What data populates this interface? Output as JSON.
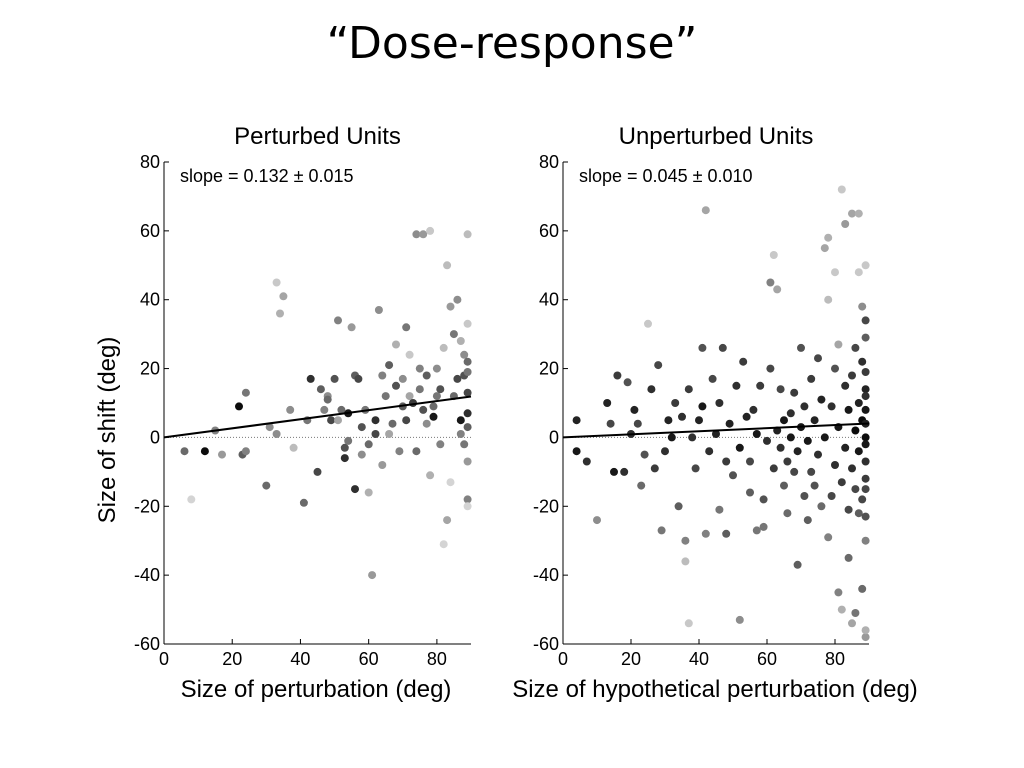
{
  "slide": {
    "title": "“Dose-response”"
  },
  "shared": {
    "ylabel": "Size of shift (deg)"
  },
  "chart_data": [
    {
      "type": "scatter",
      "title": "Perturbed Units",
      "xlabel": "Size of perturbation (deg)",
      "ylabel": "Size of shift (deg)",
      "annotation": "slope = 0.132 ± 0.015",
      "xlim": [
        0,
        90
      ],
      "ylim": [
        -60,
        80
      ],
      "xticks": [
        0,
        20,
        40,
        60,
        80
      ],
      "yticks": [
        -60,
        -40,
        -20,
        0,
        20,
        40,
        60,
        80
      ],
      "fit": {
        "slope": 0.132,
        "intercept": 0
      },
      "grid": false,
      "points": [
        [
          6,
          -4,
          0.45
        ],
        [
          8,
          -18,
          0.9
        ],
        [
          12,
          -4,
          0.05
        ],
        [
          15,
          2,
          0.55
        ],
        [
          17,
          -5,
          0.65
        ],
        [
          22,
          9,
          0.05
        ],
        [
          23,
          -5,
          0.4
        ],
        [
          24,
          13,
          0.5
        ],
        [
          24,
          -4,
          0.55
        ],
        [
          30,
          -14,
          0.45
        ],
        [
          31,
          3,
          0.6
        ],
        [
          33,
          45,
          0.85
        ],
        [
          33,
          1,
          0.6
        ],
        [
          34,
          36,
          0.75
        ],
        [
          35,
          41,
          0.7
        ],
        [
          37,
          8,
          0.6
        ],
        [
          38,
          -3,
          0.8
        ],
        [
          41,
          -19,
          0.45
        ],
        [
          42,
          5,
          0.5
        ],
        [
          43,
          17,
          0.2
        ],
        [
          45,
          -10,
          0.3
        ],
        [
          46,
          14,
          0.4
        ],
        [
          47,
          8,
          0.55
        ],
        [
          48,
          12,
          0.6
        ],
        [
          48,
          11,
          0.45
        ],
        [
          49,
          5,
          0.3
        ],
        [
          50,
          17,
          0.35
        ],
        [
          51,
          34,
          0.55
        ],
        [
          51,
          5,
          0.7
        ],
        [
          52,
          8,
          0.45
        ],
        [
          53,
          -3,
          0.35
        ],
        [
          53,
          -6,
          0.2
        ],
        [
          54,
          7,
          0.1
        ],
        [
          54,
          -1,
          0.5
        ],
        [
          55,
          32,
          0.65
        ],
        [
          56,
          18,
          0.4
        ],
        [
          56,
          -15,
          0.2
        ],
        [
          57,
          17,
          0.3
        ],
        [
          58,
          3,
          0.35
        ],
        [
          58,
          -5,
          0.6
        ],
        [
          59,
          8,
          0.5
        ],
        [
          60,
          -2,
          0.45
        ],
        [
          60,
          -16,
          0.75
        ],
        [
          61,
          -40,
          0.65
        ],
        [
          62,
          1,
          0.3
        ],
        [
          62,
          5,
          0.2
        ],
        [
          63,
          37,
          0.6
        ],
        [
          64,
          18,
          0.55
        ],
        [
          64,
          -8,
          0.65
        ],
        [
          65,
          12,
          0.5
        ],
        [
          66,
          21,
          0.4
        ],
        [
          66,
          1,
          0.7
        ],
        [
          67,
          4,
          0.45
        ],
        [
          68,
          15,
          0.35
        ],
        [
          68,
          27,
          0.75
        ],
        [
          69,
          -4,
          0.55
        ],
        [
          70,
          9,
          0.4
        ],
        [
          70,
          17,
          0.6
        ],
        [
          71,
          32,
          0.5
        ],
        [
          71,
          5,
          0.3
        ],
        [
          72,
          24,
          0.85
        ],
        [
          72,
          12,
          0.7
        ],
        [
          73,
          10,
          0.25
        ],
        [
          74,
          -4,
          0.45
        ],
        [
          74,
          59,
          0.6
        ],
        [
          75,
          20,
          0.55
        ],
        [
          75,
          14,
          0.5
        ],
        [
          76,
          59,
          0.65
        ],
        [
          76,
          8,
          0.35
        ],
        [
          77,
          4,
          0.6
        ],
        [
          77,
          18,
          0.4
        ],
        [
          78,
          -11,
          0.75
        ],
        [
          78,
          60,
          0.85
        ],
        [
          79,
          9,
          0.45
        ],
        [
          79,
          6,
          0.1
        ],
        [
          80,
          20,
          0.6
        ],
        [
          80,
          12,
          0.5
        ],
        [
          81,
          -2,
          0.55
        ],
        [
          81,
          14,
          0.35
        ],
        [
          82,
          -31,
          0.9
        ],
        [
          82,
          26,
          0.8
        ],
        [
          83,
          -24,
          0.7
        ],
        [
          83,
          50,
          0.8
        ],
        [
          84,
          38,
          0.65
        ],
        [
          84,
          -13,
          0.9
        ],
        [
          85,
          30,
          0.5
        ],
        [
          85,
          12,
          0.45
        ],
        [
          86,
          40,
          0.6
        ],
        [
          86,
          17,
          0.3
        ],
        [
          87,
          1,
          0.55
        ],
        [
          87,
          5,
          0.1
        ],
        [
          87,
          28,
          0.75
        ],
        [
          88,
          -2,
          0.5
        ],
        [
          88,
          18,
          0.35
        ],
        [
          88,
          24,
          0.6
        ],
        [
          89,
          22,
          0.45
        ],
        [
          89,
          13,
          0.3
        ],
        [
          89,
          -7,
          0.65
        ],
        [
          89,
          7,
          0.2
        ],
        [
          89,
          59,
          0.8
        ],
        [
          89,
          -18,
          0.55
        ],
        [
          89,
          3,
          0.4
        ],
        [
          89,
          33,
          0.85
        ],
        [
          89,
          19,
          0.5
        ],
        [
          89,
          -20,
          0.9
        ]
      ]
    },
    {
      "type": "scatter",
      "title": "Unperturbed Units",
      "xlabel": "Size of hypothetical perturbation (deg)",
      "annotation": "slope = 0.045 ± 0.010",
      "xlim": [
        0,
        90
      ],
      "ylim": [
        -60,
        80
      ],
      "xticks": [
        0,
        20,
        40,
        60,
        80
      ],
      "yticks": [
        -60,
        -40,
        -20,
        0,
        20,
        40,
        60,
        80
      ],
      "fit": {
        "slope": 0.045,
        "intercept": 0
      },
      "grid": false,
      "points": [
        [
          4,
          -4,
          0.1
        ],
        [
          4,
          5,
          0.15
        ],
        [
          7,
          -7,
          0.2
        ],
        [
          10,
          -24,
          0.6
        ],
        [
          13,
          10,
          0.15
        ],
        [
          14,
          4,
          0.3
        ],
        [
          15,
          -10,
          0.1
        ],
        [
          16,
          18,
          0.25
        ],
        [
          18,
          -10,
          0.2
        ],
        [
          19,
          16,
          0.35
        ],
        [
          20,
          1,
          0.2
        ],
        [
          21,
          8,
          0.15
        ],
        [
          22,
          4,
          0.3
        ],
        [
          23,
          -14,
          0.45
        ],
        [
          24,
          -5,
          0.35
        ],
        [
          25,
          33,
          0.85
        ],
        [
          26,
          14,
          0.2
        ],
        [
          27,
          -9,
          0.25
        ],
        [
          28,
          21,
          0.3
        ],
        [
          29,
          -27,
          0.5
        ],
        [
          30,
          -4,
          0.2
        ],
        [
          31,
          5,
          0.15
        ],
        [
          32,
          0,
          0.1
        ],
        [
          33,
          10,
          0.25
        ],
        [
          34,
          -20,
          0.4
        ],
        [
          35,
          6,
          0.2
        ],
        [
          36,
          -30,
          0.55
        ],
        [
          36,
          -36,
          0.8
        ],
        [
          37,
          14,
          0.25
        ],
        [
          37,
          -54,
          0.85
        ],
        [
          38,
          0,
          0.2
        ],
        [
          39,
          -9,
          0.3
        ],
        [
          40,
          5,
          0.15
        ],
        [
          41,
          26,
          0.35
        ],
        [
          41,
          9,
          0.1
        ],
        [
          42,
          -28,
          0.55
        ],
        [
          42,
          66,
          0.7
        ],
        [
          43,
          -4,
          0.2
        ],
        [
          44,
          17,
          0.3
        ],
        [
          45,
          1,
          0.15
        ],
        [
          46,
          -21,
          0.5
        ],
        [
          46,
          10,
          0.2
        ],
        [
          47,
          26,
          0.3
        ],
        [
          48,
          -7,
          0.25
        ],
        [
          48,
          -28,
          0.4
        ],
        [
          49,
          4,
          0.15
        ],
        [
          50,
          -11,
          0.35
        ],
        [
          51,
          15,
          0.2
        ],
        [
          52,
          -3,
          0.1
        ],
        [
          52,
          -53,
          0.6
        ],
        [
          53,
          22,
          0.25
        ],
        [
          54,
          6,
          0.15
        ],
        [
          55,
          -7,
          0.3
        ],
        [
          55,
          -16,
          0.4
        ],
        [
          56,
          8,
          0.2
        ],
        [
          57,
          1,
          0.1
        ],
        [
          57,
          -27,
          0.5
        ],
        [
          58,
          15,
          0.25
        ],
        [
          59,
          -18,
          0.35
        ],
        [
          59,
          -26,
          0.5
        ],
        [
          60,
          -1,
          0.2
        ],
        [
          61,
          20,
          0.3
        ],
        [
          61,
          45,
          0.55
        ],
        [
          62,
          -9,
          0.25
        ],
        [
          62,
          53,
          0.85
        ],
        [
          63,
          2,
          0.15
        ],
        [
          63,
          43,
          0.7
        ],
        [
          64,
          -3,
          0.2
        ],
        [
          64,
          14,
          0.3
        ],
        [
          65,
          -14,
          0.4
        ],
        [
          65,
          5,
          0.1
        ],
        [
          66,
          -7,
          0.25
        ],
        [
          66,
          -22,
          0.45
        ],
        [
          67,
          7,
          0.2
        ],
        [
          67,
          0,
          0.1
        ],
        [
          68,
          -10,
          0.3
        ],
        [
          68,
          13,
          0.25
        ],
        [
          69,
          -4,
          0.15
        ],
        [
          69,
          -37,
          0.4
        ],
        [
          70,
          26,
          0.35
        ],
        [
          70,
          3,
          0.1
        ],
        [
          71,
          -17,
          0.35
        ],
        [
          71,
          9,
          0.2
        ],
        [
          72,
          -1,
          0.1
        ],
        [
          72,
          -24,
          0.4
        ],
        [
          73,
          17,
          0.25
        ],
        [
          73,
          -10,
          0.3
        ],
        [
          74,
          5,
          0.15
        ],
        [
          74,
          -14,
          0.35
        ],
        [
          75,
          23,
          0.3
        ],
        [
          75,
          -5,
          0.2
        ],
        [
          76,
          -20,
          0.45
        ],
        [
          76,
          11,
          0.15
        ],
        [
          77,
          55,
          0.7
        ],
        [
          77,
          0,
          0.1
        ],
        [
          78,
          58,
          0.75
        ],
        [
          78,
          40,
          0.8
        ],
        [
          78,
          -29,
          0.55
        ],
        [
          79,
          9,
          0.2
        ],
        [
          79,
          -17,
          0.3
        ],
        [
          80,
          48,
          0.85
        ],
        [
          80,
          20,
          0.35
        ],
        [
          80,
          -8,
          0.2
        ],
        [
          81,
          -45,
          0.55
        ],
        [
          81,
          27,
          0.7
        ],
        [
          81,
          3,
          0.1
        ],
        [
          82,
          72,
          0.85
        ],
        [
          82,
          -50,
          0.75
        ],
        [
          82,
          -13,
          0.25
        ],
        [
          83,
          62,
          0.65
        ],
        [
          83,
          15,
          0.2
        ],
        [
          83,
          -3,
          0.15
        ],
        [
          84,
          -21,
          0.3
        ],
        [
          84,
          8,
          0.1
        ],
        [
          84,
          -35,
          0.45
        ],
        [
          85,
          65,
          0.7
        ],
        [
          85,
          -54,
          0.7
        ],
        [
          85,
          18,
          0.25
        ],
        [
          85,
          -9,
          0.2
        ],
        [
          86,
          -51,
          0.5
        ],
        [
          86,
          26,
          0.3
        ],
        [
          86,
          2,
          0.05
        ],
        [
          86,
          -15,
          0.3
        ],
        [
          87,
          48,
          0.85
        ],
        [
          87,
          65,
          0.75
        ],
        [
          87,
          -22,
          0.4
        ],
        [
          87,
          10,
          0.15
        ],
        [
          87,
          -4,
          0.1
        ],
        [
          88,
          -44,
          0.45
        ],
        [
          88,
          38,
          0.6
        ],
        [
          88,
          22,
          0.2
        ],
        [
          88,
          -18,
          0.3
        ],
        [
          88,
          5,
          0.05
        ],
        [
          89,
          -58,
          0.65
        ],
        [
          89,
          50,
          0.85
        ],
        [
          89,
          -30,
          0.55
        ],
        [
          89,
          -12,
          0.25
        ],
        [
          89,
          29,
          0.4
        ],
        [
          89,
          14,
          0.15
        ],
        [
          89,
          0,
          0.05
        ],
        [
          89,
          -7,
          0.2
        ],
        [
          89,
          8,
          0.1
        ],
        [
          89,
          19,
          0.25
        ],
        [
          89,
          -23,
          0.35
        ],
        [
          89,
          34,
          0.3
        ],
        [
          89,
          -2,
          0.1
        ],
        [
          89,
          4,
          0.15
        ],
        [
          89,
          -56,
          0.75
        ],
        [
          89,
          12,
          0.2
        ],
        [
          89,
          -15,
          0.3
        ]
      ]
    }
  ]
}
